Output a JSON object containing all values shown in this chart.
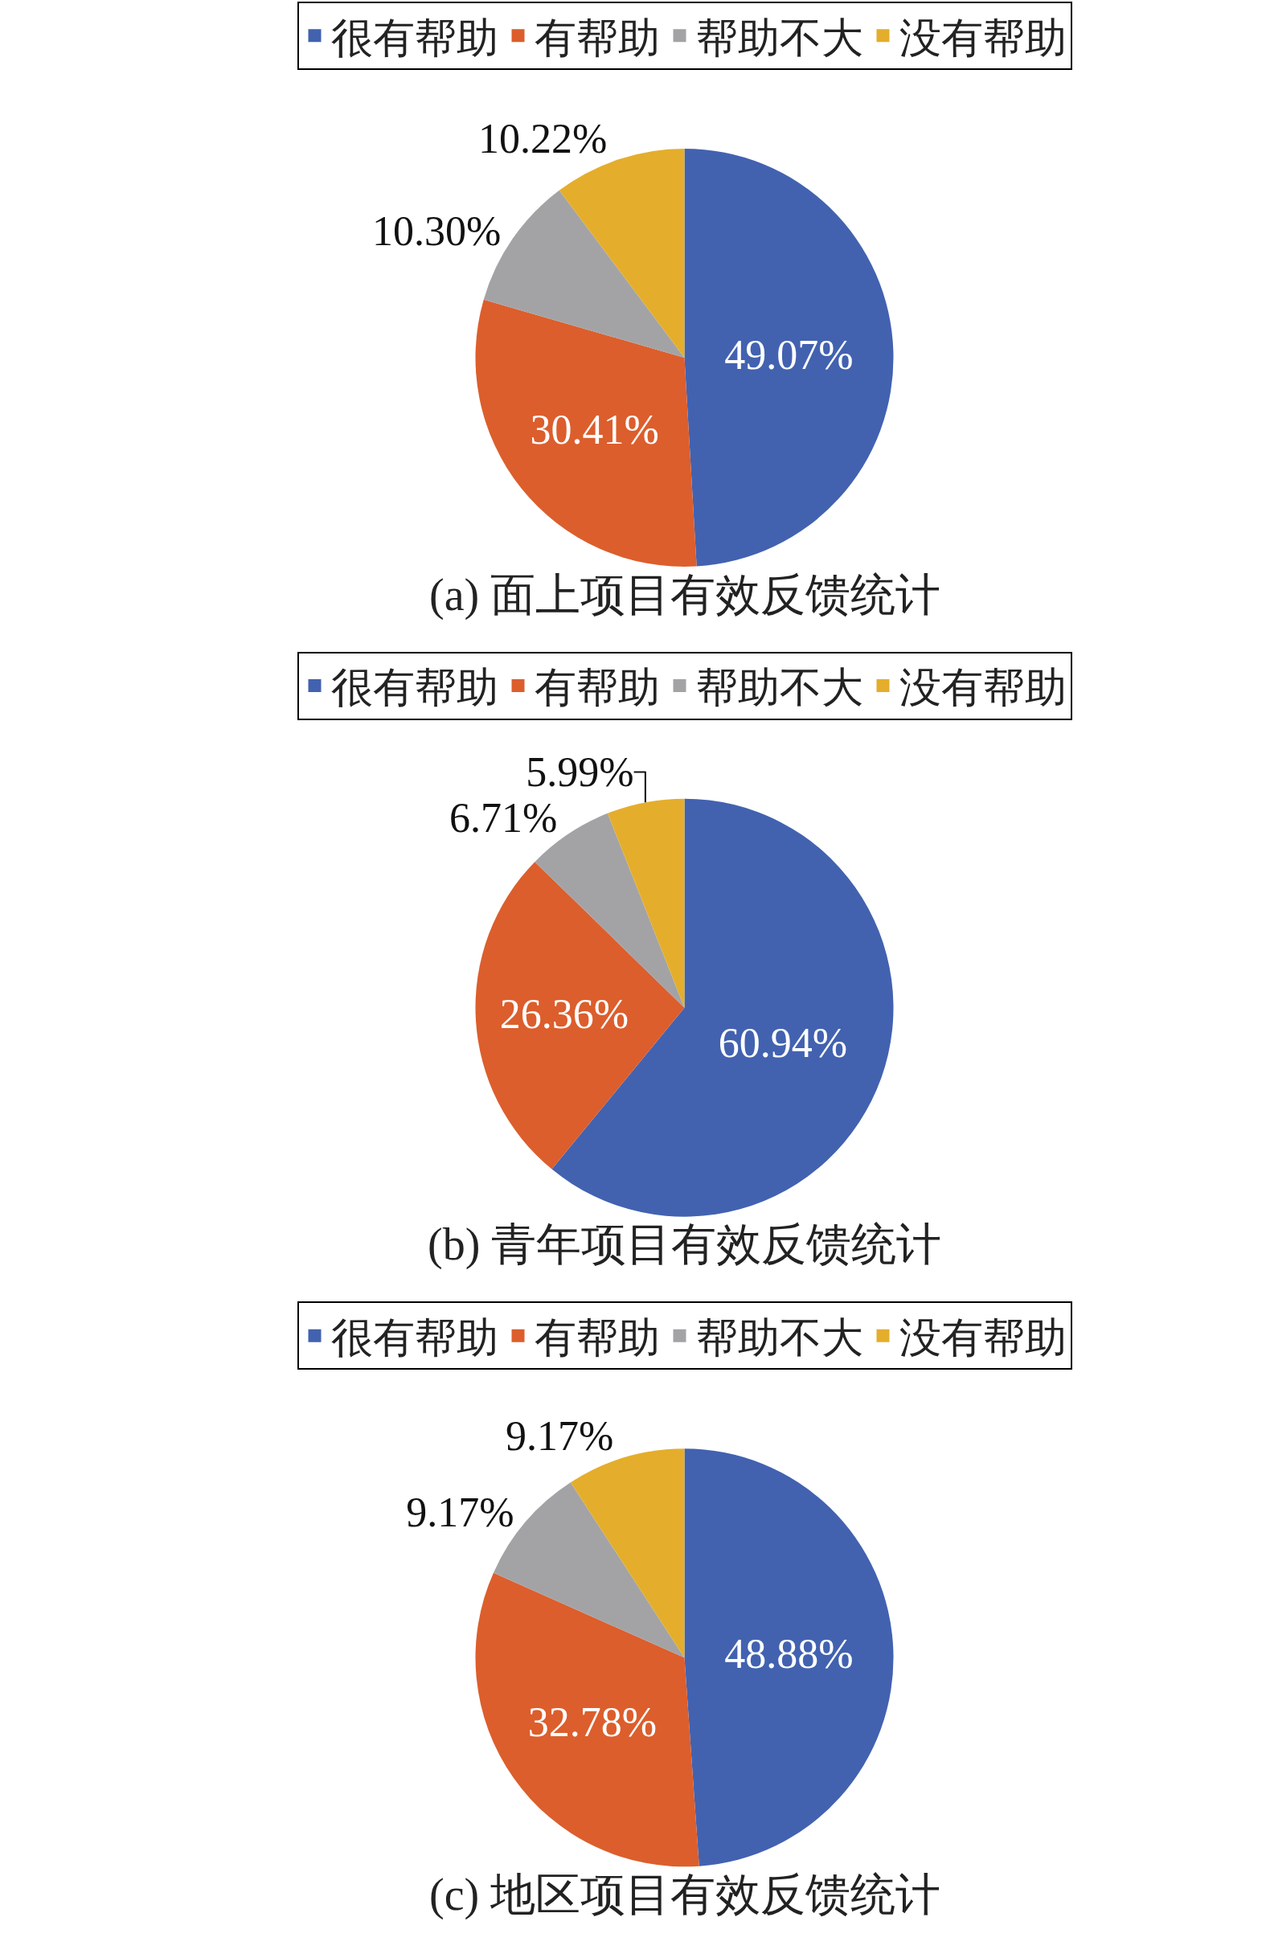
{
  "chart_data": [
    {
      "type": "pie",
      "title": "(a) 面上项目有效反馈统计",
      "categories": [
        "很有帮助",
        "有帮助",
        "帮助不大",
        "没有帮助"
      ],
      "values": [
        49.07,
        30.41,
        10.3,
        10.22
      ],
      "colors": [
        "#4262b0",
        "#dc5e2c",
        "#a3a3a6",
        "#e4ae2c"
      ],
      "value_labels": [
        "49.07%",
        "30.41%",
        "10.30%",
        "10.22%"
      ],
      "legend": "top"
    },
    {
      "type": "pie",
      "title": "(b) 青年项目有效反馈统计",
      "categories": [
        "很有帮助",
        "有帮助",
        "帮助不大",
        "没有帮助"
      ],
      "values": [
        60.94,
        26.36,
        6.71,
        5.99
      ],
      "colors": [
        "#4262b0",
        "#dc5e2c",
        "#a3a3a6",
        "#e4ae2c"
      ],
      "value_labels": [
        "60.94%",
        "26.36%",
        "6.71%",
        "5.99%"
      ],
      "legend": "top"
    },
    {
      "type": "pie",
      "title": "(c) 地区项目有效反馈统计",
      "categories": [
        "很有帮助",
        "有帮助",
        "帮助不大",
        "没有帮助"
      ],
      "values": [
        48.88,
        32.78,
        9.17,
        9.17
      ],
      "colors": [
        "#4262b0",
        "#dc5e2c",
        "#a3a3a6",
        "#e4ae2c"
      ],
      "value_labels": [
        "48.88%",
        "32.78%",
        "9.17%",
        "9.17%"
      ],
      "legend": "top"
    }
  ]
}
